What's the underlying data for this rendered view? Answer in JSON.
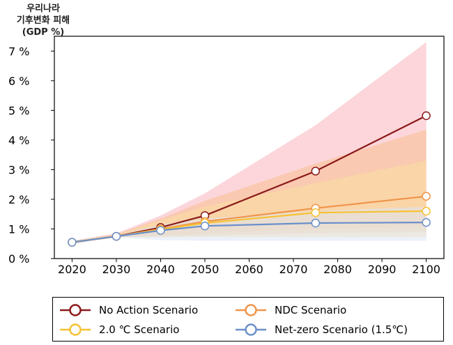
{
  "chart_data": {
    "type": "line",
    "ylabel_lines": [
      "우리나라",
      "기후변화 피해",
      "(GDP %)"
    ],
    "x": [
      2020,
      2030,
      2040,
      2050,
      2075,
      2100
    ],
    "xticks": [
      "2020",
      "2030",
      "2040",
      "2050",
      "2060",
      "2070",
      "2080",
      "2090",
      "2100"
    ],
    "xlim": [
      2016,
      2104
    ],
    "yticks": [
      "0 %",
      "1 %",
      "2 %",
      "3 %",
      "4 %",
      "5 %",
      "6 %",
      "7 %"
    ],
    "ylim": [
      0,
      7.5
    ],
    "grid": false,
    "legend_position": "bottom",
    "series": [
      {
        "name": "No Action Scenario",
        "color": "#8b1a1a",
        "band_color": "#f9b4bd",
        "values": [
          0.55,
          0.75,
          1.05,
          1.45,
          2.95,
          4.82
        ],
        "band_low": [
          0.5,
          0.72,
          0.78,
          0.85,
          1.0,
          1.1
        ],
        "band_high": [
          0.6,
          0.85,
          1.45,
          2.2,
          4.5,
          7.3
        ]
      },
      {
        "name": "NDC Scenario",
        "color": "#f0944a",
        "band_color": "#f7bf8e",
        "values": [
          0.55,
          0.75,
          1.0,
          1.25,
          1.7,
          2.1
        ],
        "band_low": [
          0.5,
          0.72,
          0.75,
          0.78,
          0.85,
          0.9
        ],
        "band_high": [
          0.6,
          0.82,
          1.35,
          1.95,
          3.2,
          4.35
        ]
      },
      {
        "name": "2.0 ℃ Scenario",
        "color": "#f6c233",
        "band_color": "#f9dfa0",
        "values": [
          0.55,
          0.75,
          0.98,
          1.2,
          1.55,
          1.6
        ],
        "band_low": [
          0.5,
          0.72,
          0.72,
          0.72,
          0.72,
          0.72
        ],
        "band_high": [
          0.6,
          0.8,
          1.3,
          1.75,
          2.55,
          3.3
        ]
      },
      {
        "name": "Net-zero Scenario (1.5℃)",
        "color": "#6a8fca",
        "band_color": "#dde6f6",
        "values": [
          0.55,
          0.75,
          0.95,
          1.1,
          1.2,
          1.22
        ],
        "band_low": [
          0.5,
          0.72,
          0.62,
          0.6,
          0.6,
          0.6
        ],
        "band_high": [
          0.6,
          0.78,
          1.15,
          1.35,
          1.6,
          1.75
        ]
      }
    ]
  }
}
